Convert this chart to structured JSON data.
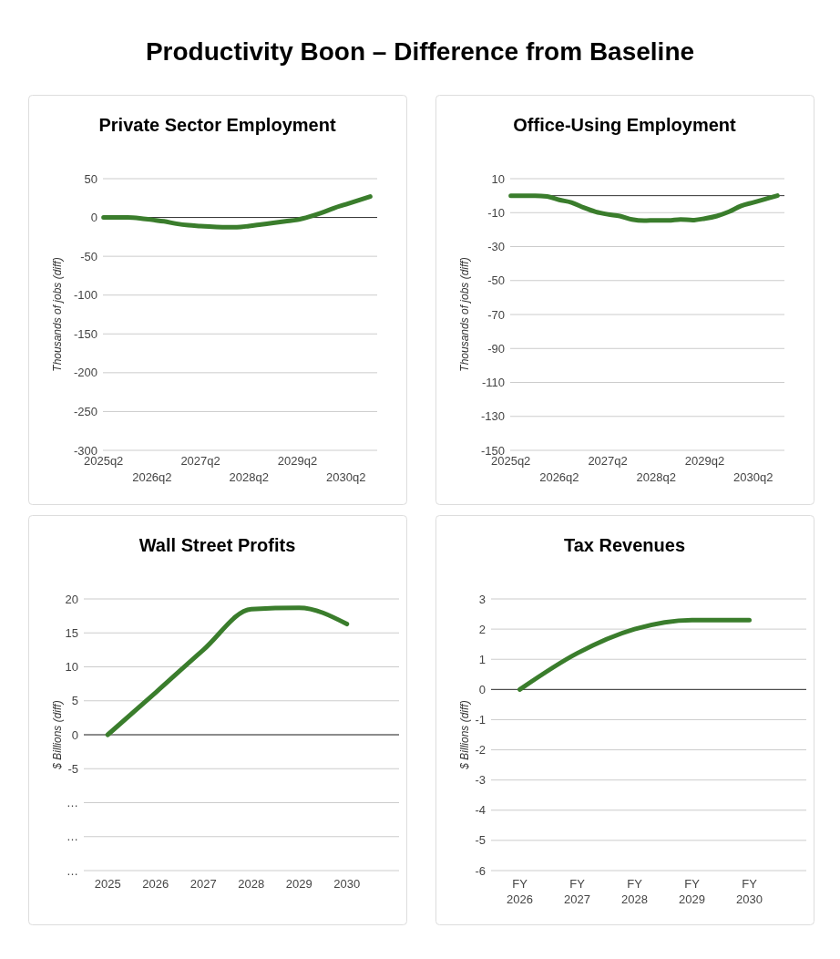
{
  "chart_data": [
    {
      "type": "other",
      "title": "Productivity Boon – Difference from Baseline"
    },
    {
      "type": "line",
      "title": "Private Sector Employment",
      "ylabel": "Thousands of jobs (diff)",
      "categories": [
        "2025q2",
        null,
        null,
        null,
        "2026q2",
        null,
        null,
        null,
        "2027q2",
        null,
        null,
        null,
        "2028q2",
        null,
        null,
        null,
        "2029q2",
        null,
        null,
        null,
        "2030q2",
        null,
        null
      ],
      "series": [
        {
          "color": "#3a7d2c",
          "values": [
            0,
            0,
            0,
            -1,
            -3,
            -5,
            -8,
            -10,
            -11,
            -12,
            -12.5,
            -12.5,
            -11,
            -9,
            -7,
            -5,
            -3,
            1,
            6,
            12,
            17,
            22,
            27
          ]
        }
      ],
      "ylim": [
        -300,
        50
      ],
      "yticks": [
        50,
        0,
        -50,
        -100,
        -150,
        -200,
        -250,
        -300
      ],
      "grid": "y",
      "ref_lines": [
        {
          "axis": "y",
          "value": 0,
          "color": "#333333"
        }
      ]
    },
    {
      "type": "line",
      "title": "Office-Using Employment",
      "ylabel": "Thousands of jobs (diff)",
      "categories": [
        "2025q2",
        null,
        null,
        null,
        "2026q2",
        null,
        null,
        null,
        "2027q2",
        null,
        null,
        null,
        "2028q2",
        null,
        null,
        null,
        "2029q2",
        null,
        null,
        null,
        "2030q2",
        null,
        null
      ],
      "series": [
        {
          "color": "#3a7d2c",
          "values": [
            0,
            0,
            0,
            -0.5,
            -2.5,
            -4,
            -7,
            -9.5,
            -11,
            -12,
            -14,
            -14.7,
            -14.5,
            -14.6,
            -14,
            -14.4,
            -13.5,
            -12,
            -9.5,
            -6,
            -4,
            -2,
            0
          ]
        }
      ],
      "ylim": [
        -150,
        10
      ],
      "yticks": [
        10,
        -10,
        -30,
        -50,
        -70,
        -90,
        -110,
        -130,
        -150
      ],
      "grid": "y",
      "ref_lines": [
        {
          "axis": "y",
          "value": 0,
          "color": "#333333"
        }
      ]
    },
    {
      "type": "line",
      "title": "Wall Street Profits",
      "ylabel": "$ Billions (diff)",
      "categories": [
        "2025",
        "2026",
        "2027",
        "2028",
        "2029",
        "2030"
      ],
      "series": [
        {
          "color": "#3a7d2c",
          "values": [
            0,
            6.2,
            12.5,
            18.5,
            18.7,
            16.3
          ]
        }
      ],
      "ylim": [
        -20,
        20
      ],
      "yticks": [
        20,
        15,
        10,
        5,
        0,
        -5,
        {
          "value": -10,
          "label": "…"
        },
        {
          "value": -15,
          "label": "…"
        },
        {
          "value": -20,
          "label": "…"
        }
      ],
      "grid": "y",
      "ref_lines": [
        {
          "axis": "y",
          "value": 0,
          "color": "#333333"
        }
      ]
    },
    {
      "type": "line",
      "title": "Tax Revenues",
      "ylabel": "$ Billions (diff)",
      "categories": [
        "FY 2026",
        "FY 2027",
        "FY 2028",
        "FY 2029",
        "FY 2030"
      ],
      "series": [
        {
          "color": "#3a7d2c",
          "values": [
            0,
            1.2,
            2.0,
            2.3,
            2.3
          ]
        }
      ],
      "ylim": [
        -6,
        3
      ],
      "yticks": [
        3,
        2,
        1,
        0,
        -1,
        -2,
        -3,
        -4,
        -5,
        -6
      ],
      "grid": "y",
      "ref_lines": [
        {
          "axis": "y",
          "value": 0,
          "color": "#333333"
        }
      ]
    }
  ]
}
